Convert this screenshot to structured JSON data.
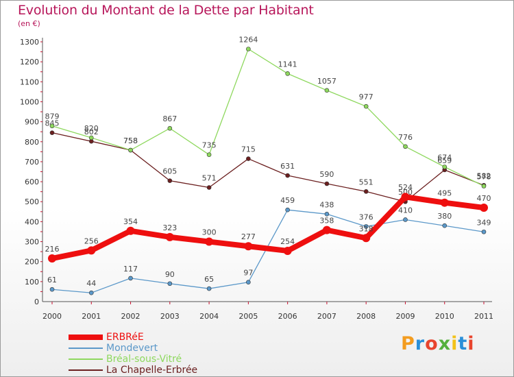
{
  "header": {
    "title": "Evolution du Montant de la Dette par Habitant",
    "subtitle": "(en €)"
  },
  "logo": {
    "text": "Proxiti"
  },
  "chart_data": {
    "type": "line",
    "title": "Evolution du Montant de la Dette par Habitant",
    "subtitle": "(en €)",
    "xlabel": "",
    "ylabel": "",
    "x": [
      "2000",
      "2001",
      "2002",
      "2003",
      "2004",
      "2005",
      "2006",
      "2007",
      "2008",
      "2009",
      "2010",
      "2011"
    ],
    "ylim": [
      0,
      1300
    ],
    "yticks": [
      0,
      100,
      200,
      300,
      400,
      500,
      600,
      700,
      800,
      900,
      1000,
      1100,
      1200,
      1300
    ],
    "grid": false,
    "legend_position": "bottom-left",
    "series": [
      {
        "name": "La Chapelle-Erbrée",
        "color": "#6b1f1f",
        "values": [
          845,
          802,
          758,
          605,
          571,
          715,
          631,
          590,
          551,
          500,
          659,
          582
        ]
      },
      {
        "name": "Bréal-sous-Vitré",
        "color": "#8ed85e",
        "values": [
          879,
          820,
          758,
          867,
          735,
          1264,
          1141,
          1057,
          977,
          776,
          674,
          578
        ]
      },
      {
        "name": "Mondevert",
        "color": "#5b98c9",
        "values": [
          61,
          44,
          117,
          90,
          65,
          97,
          459,
          438,
          376,
          410,
          380,
          349
        ]
      },
      {
        "name": "ERBRéE",
        "color": "#ee0f0f",
        "values": [
          216,
          256,
          354,
          323,
          300,
          277,
          254,
          358,
          318,
          524,
          495,
          470
        ]
      }
    ]
  },
  "legend": {
    "items": [
      {
        "label": "ERBRéE",
        "color": "#ee0f0f"
      },
      {
        "label": "Mondevert",
        "color": "#5b98c9"
      },
      {
        "label": "Bréal-sous-Vitré",
        "color": "#8ed85e"
      },
      {
        "label": "La Chapelle-Erbrée",
        "color": "#6b1f1f"
      }
    ]
  }
}
